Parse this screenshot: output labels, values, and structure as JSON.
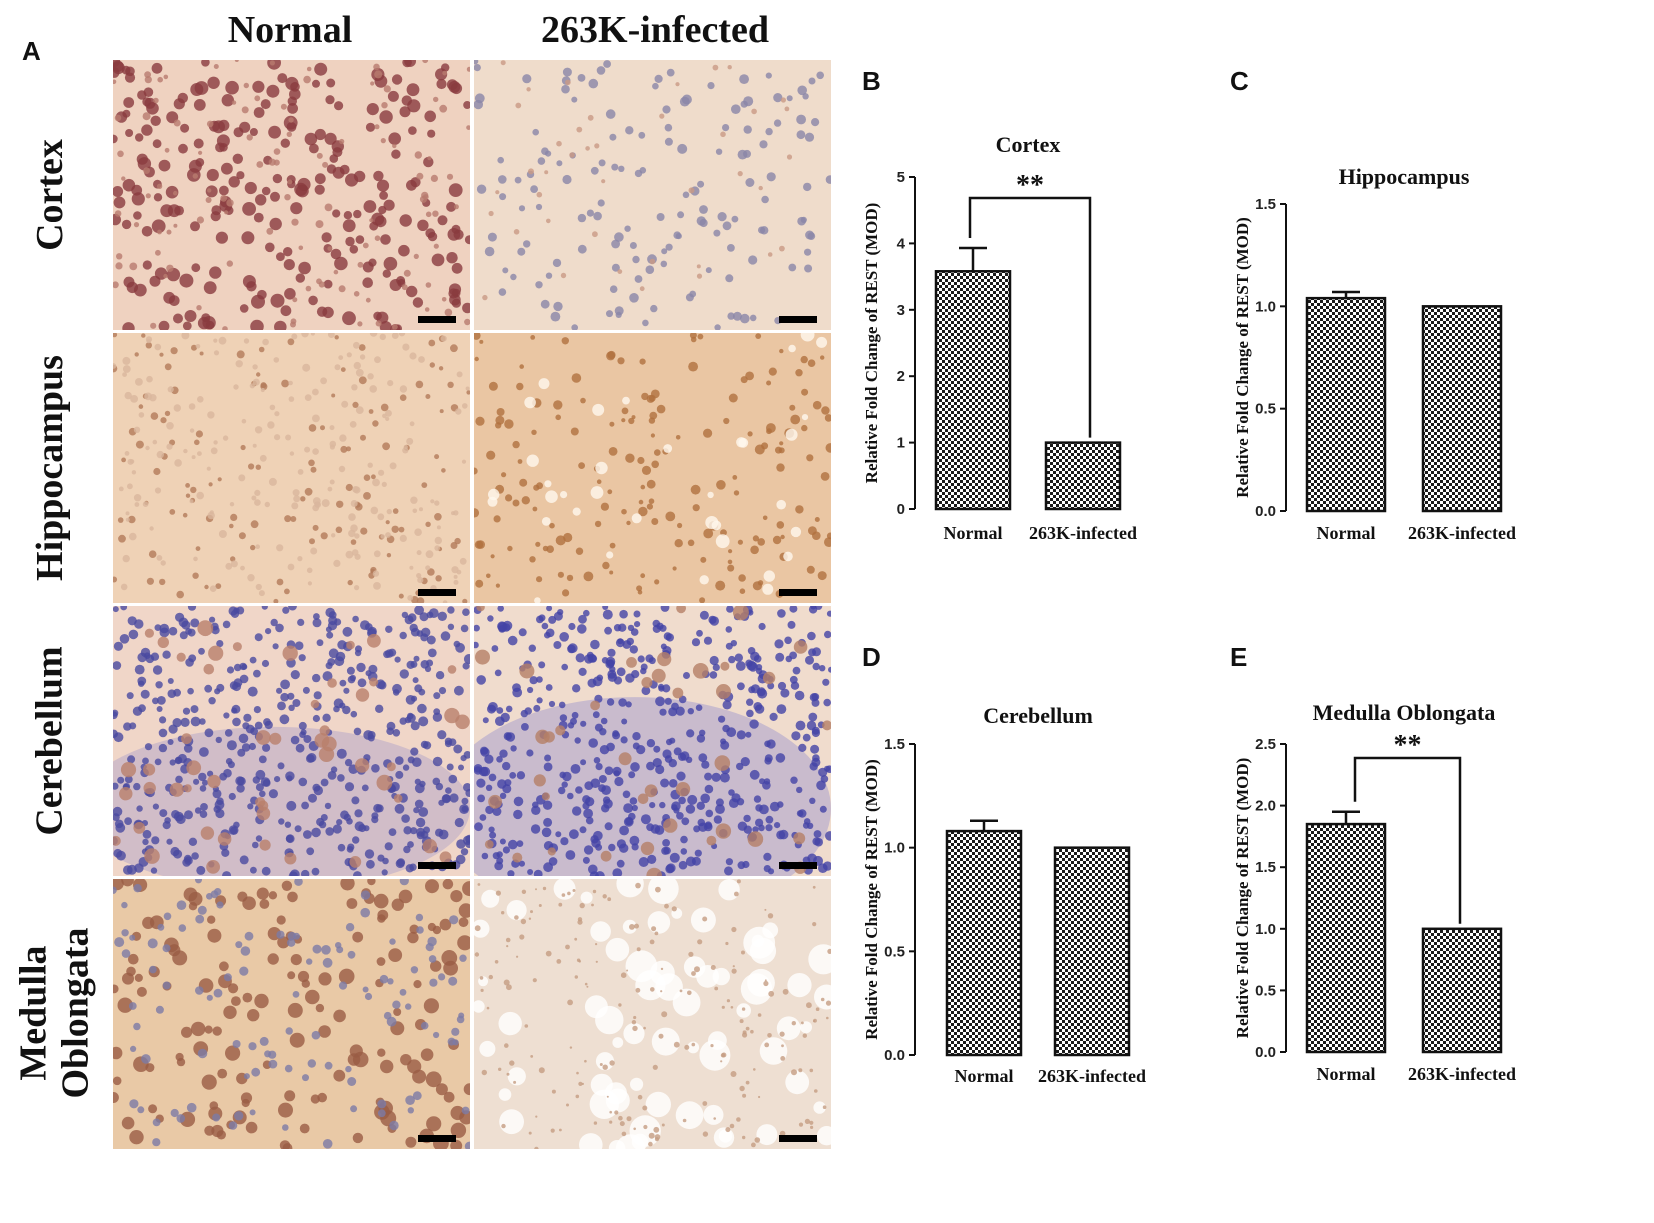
{
  "panel_a": {
    "letter": "A",
    "columns": [
      "Normal",
      "263K-infected"
    ],
    "rows": [
      {
        "label_lines": [
          "Cortex"
        ]
      },
      {
        "label_lines": [
          "Hippocampus"
        ]
      },
      {
        "label_lines": [
          "Cerebellum"
        ]
      },
      {
        "label_lines": [
          "Medulla",
          "Oblongata"
        ]
      }
    ]
  },
  "chart_data": [
    {
      "panel": "B",
      "type": "bar",
      "title": "Cortex",
      "ylabel": "Relative Fold Change of  REST (MOD)",
      "categories": [
        "Normal",
        "263K-infected"
      ],
      "values": [
        3.58,
        1.0
      ],
      "errors": [
        0.35,
        0.0
      ],
      "ylim": [
        0,
        5
      ],
      "yticks": [
        "0",
        "1",
        "2",
        "3",
        "4",
        "5"
      ],
      "significance": "**"
    },
    {
      "panel": "C",
      "type": "bar",
      "title": "Hippocampus",
      "ylabel": "Relative Fold Change of  REST (MOD)",
      "categories": [
        "Normal",
        "263K-infected"
      ],
      "values": [
        1.04,
        1.0
      ],
      "errors": [
        0.03,
        0.0
      ],
      "ylim": [
        0,
        1.5
      ],
      "yticks": [
        "0.0",
        "0.5",
        "1.0",
        "1.5"
      ],
      "significance": ""
    },
    {
      "panel": "D",
      "type": "bar",
      "title": "Cerebellum",
      "ylabel": "Relative Fold Change of  REST (MOD)",
      "categories": [
        "Normal",
        "263K-infected"
      ],
      "values": [
        1.08,
        1.0
      ],
      "errors": [
        0.05,
        0.0
      ],
      "ylim": [
        0,
        1.5
      ],
      "yticks": [
        "0.0",
        "0.5",
        "1.0",
        "1.5"
      ],
      "significance": ""
    },
    {
      "panel": "E",
      "type": "bar",
      "title": "Medulla Oblongata",
      "ylabel": "Relative Fold Change of  REST (MOD)",
      "categories": [
        "Normal",
        "263K-infected"
      ],
      "values": [
        1.85,
        1.0
      ],
      "errors": [
        0.1,
        0.0
      ],
      "ylim": [
        0,
        2.5
      ],
      "yticks": [
        "0.0",
        "0.5",
        "1.0",
        "1.5",
        "2.0",
        "2.5"
      ],
      "significance": "**"
    }
  ]
}
